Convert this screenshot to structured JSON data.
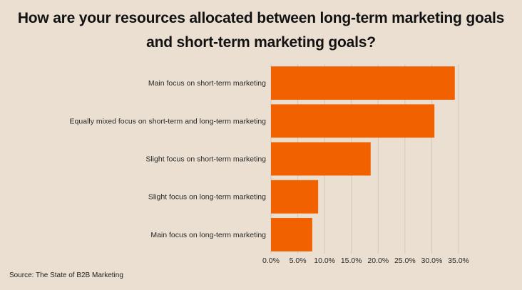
{
  "chart_data": {
    "type": "bar",
    "orientation": "horizontal",
    "title_lines": [
      "How are your resources allocated between long-term marketing goals",
      "and short-term marketing goals?"
    ],
    "categories": [
      "Main focus on short-term marketing",
      "Equally mixed focus on short-term and long-term marketing",
      "Slight focus on short-term marketing",
      "Slight focus on long-term marketing",
      "Main focus on long-term marketing"
    ],
    "values": [
      34.3,
      30.5,
      18.6,
      8.8,
      7.7
    ],
    "xlim": [
      0,
      35
    ],
    "xticks": [
      "0.0%",
      "5.0%",
      "10.0%",
      "15.0%",
      "20.0%",
      "25.0%",
      "30.0%",
      "35.0%"
    ],
    "xlabel": "",
    "ylabel": "",
    "grid": "vertical",
    "legend": "none",
    "bar_color": "#F26100",
    "grid_color": "#D3C9BB",
    "background": "#EADFD0",
    "source": "Source: The State of B2B Marketing"
  }
}
